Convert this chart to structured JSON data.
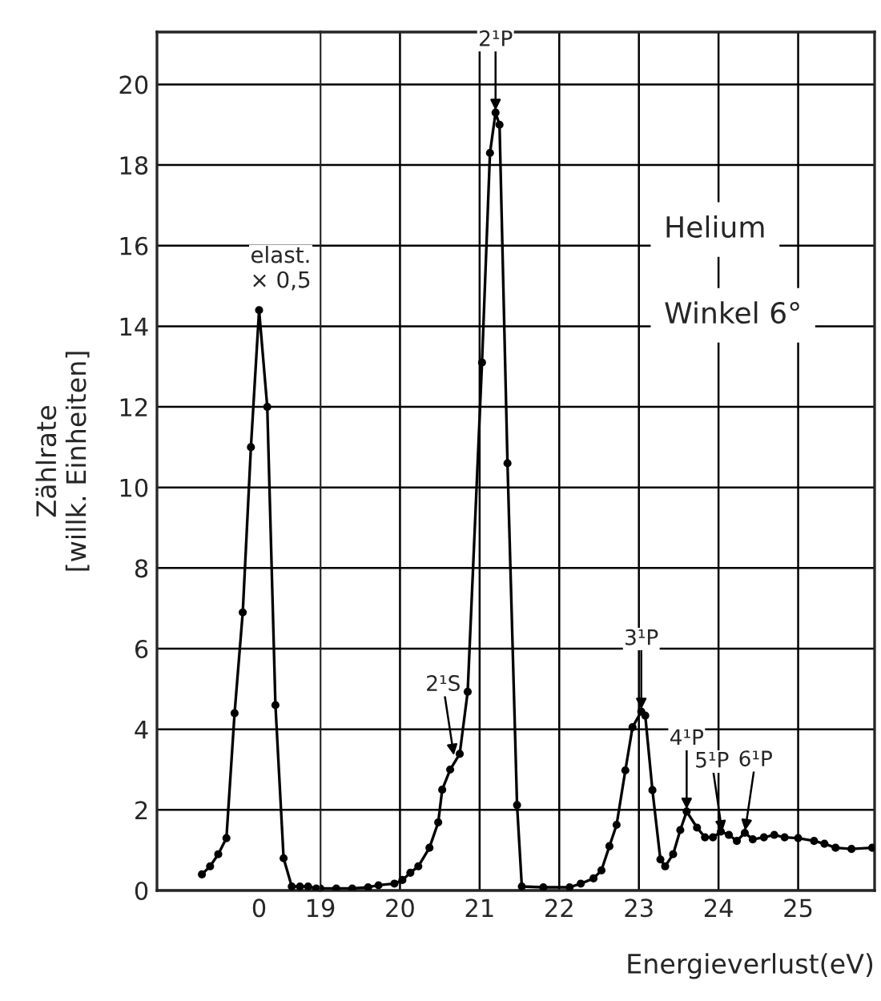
{
  "chart_data": [
    {
      "type": "line",
      "ylabel": "Zählrate\n[willk. Einheiten]",
      "categories": [
        null,
        null,
        null,
        null,
        null,
        null,
        null,
        null,
        null,
        null,
        null,
        null,
        "0",
        null,
        null,
        null,
        null,
        null,
        null,
        null
      ],
      "ylim": [
        0,
        21.3
      ],
      "yticks": [
        0,
        2,
        4,
        6,
        8,
        10,
        12,
        14,
        16,
        18,
        20
      ],
      "grid": "y",
      "marker": "circle",
      "line_style": "solid",
      "series": [
        {
          "color": "#000000",
          "values": [
            null,
            null,
            null,
            null,
            null,
            0.4,
            0.6,
            0.9,
            1.3,
            4.4,
            6.9,
            11.0,
            14.4,
            12.0,
            4.6,
            0.8,
            0.1,
            0.1,
            0.1,
            0.05
          ]
        }
      ],
      "annotations": [
        {
          "text": "elast.\n× 0,5",
          "x": "0",
          "y": 14.4
        }
      ]
    },
    {
      "type": "line",
      "xlabel": "Energieverlust(eV)",
      "xlim": [
        19,
        25.96
      ],
      "xticks": [
        19,
        20,
        21,
        22,
        23,
        24,
        25
      ],
      "ylim": [
        0,
        21.3
      ],
      "yticks": [
        0,
        2,
        4,
        6,
        8,
        10,
        12,
        14,
        16,
        18,
        20
      ],
      "grid": true,
      "marker": "circle",
      "line_style": "solid",
      "tick_labels": "x",
      "series": [
        {
          "color": "#000000",
          "x": [
            19.0,
            19.2,
            19.4,
            19.6,
            19.73,
            19.93,
            20.03,
            20.13,
            20.23,
            20.37,
            20.48,
            20.53,
            20.63,
            20.75,
            20.85,
            21.03,
            21.13,
            21.2,
            21.25,
            21.35,
            21.47,
            21.53,
            21.8,
            22.13,
            22.27,
            22.43,
            22.53,
            22.63,
            22.72,
            22.83,
            22.92,
            23.03,
            23.08,
            23.17,
            23.27,
            23.33,
            23.43,
            23.52,
            23.6,
            23.73,
            23.83,
            23.93,
            24.03,
            24.13,
            24.23,
            24.33,
            24.43,
            24.57,
            24.7,
            24.83,
            25.0,
            25.2,
            25.33,
            25.47,
            25.67,
            25.93
          ],
          "values": [
            0.05,
            0.05,
            0.05,
            0.08,
            0.13,
            0.17,
            0.26,
            0.44,
            0.6,
            1.06,
            1.69,
            2.5,
            3.0,
            3.39,
            4.93,
            13.1,
            18.3,
            19.3,
            19.0,
            10.6,
            2.12,
            0.1,
            0.08,
            0.08,
            0.17,
            0.3,
            0.5,
            1.1,
            1.63,
            2.98,
            4.05,
            4.44,
            4.34,
            2.49,
            0.77,
            0.6,
            0.9,
            1.5,
            1.96,
            1.56,
            1.32,
            1.32,
            1.46,
            1.38,
            1.23,
            1.43,
            1.27,
            1.32,
            1.38,
            1.32,
            1.3,
            1.23,
            1.16,
            1.06,
            1.03,
            1.06
          ]
        }
      ],
      "annotations": [
        {
          "text": "2¹P",
          "x": 21.2,
          "y": 19.3
        },
        {
          "text": "2¹S",
          "x": 20.68,
          "y": 3.3
        },
        {
          "text": "3¹P",
          "x": 23.03,
          "y": 4.44
        },
        {
          "text": "4¹P",
          "x": 23.6,
          "y": 1.96
        },
        {
          "text": "5¹P",
          "x": 24.05,
          "y": 1.4
        },
        {
          "text": "6¹P",
          "x": 24.33,
          "y": 1.43
        },
        "Helium",
        "Winkel 6°"
      ]
    }
  ]
}
